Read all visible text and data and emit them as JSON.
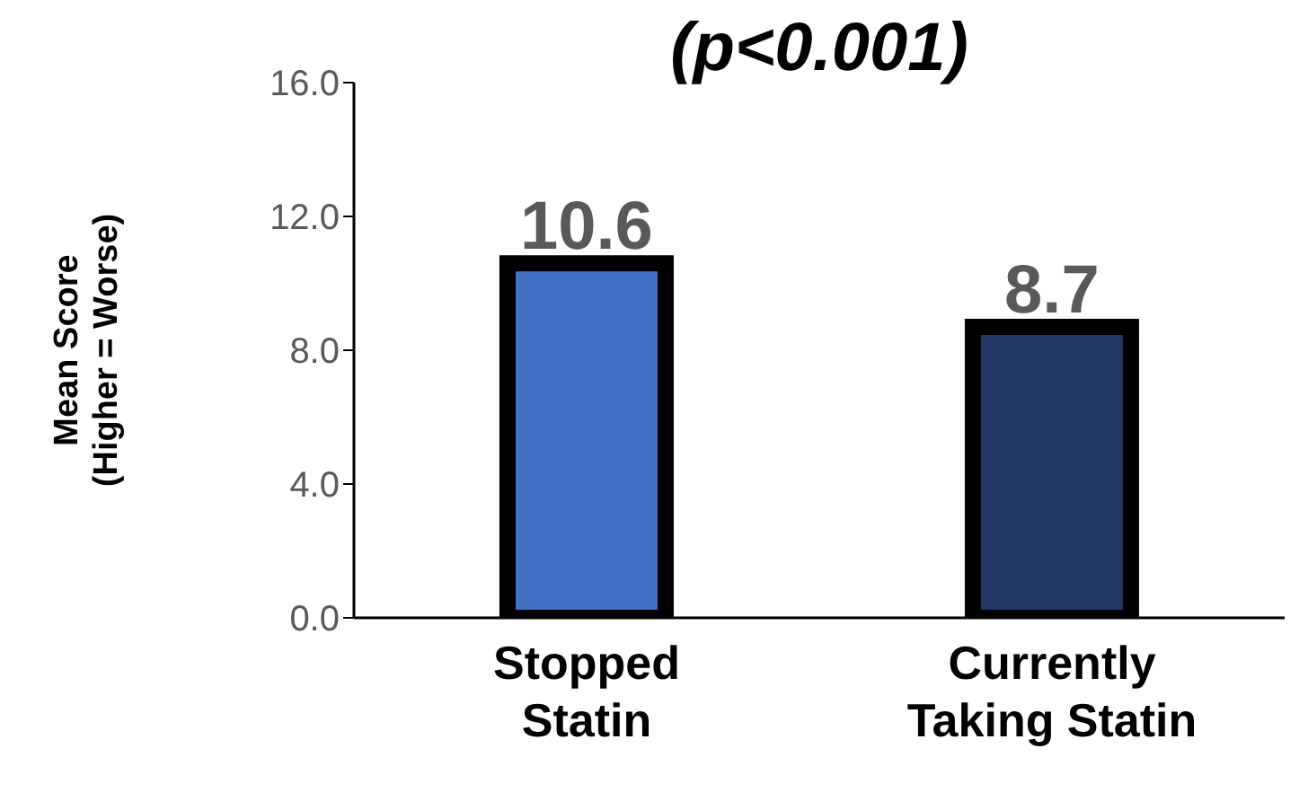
{
  "chart_data": {
    "type": "bar",
    "title": "(p<0.001)",
    "ylabel": "Mean Score\n(Higher = Worse)",
    "categories": [
      "Stopped Statin",
      "Currently Taking Statin"
    ],
    "values": [
      10.6,
      8.7
    ],
    "colors": [
      "#4472c4",
      "#1f3864"
    ],
    "ylim": [
      0,
      16
    ],
    "yticks": [
      {
        "value": 0,
        "label": "0.0"
      },
      {
        "value": 4,
        "label": "4.0"
      },
      {
        "value": 8,
        "label": "8.0"
      },
      {
        "value": 12,
        "label": "12.0"
      },
      {
        "value": 16,
        "label": "16.0"
      }
    ],
    "data_labels": true,
    "grid": false
  }
}
